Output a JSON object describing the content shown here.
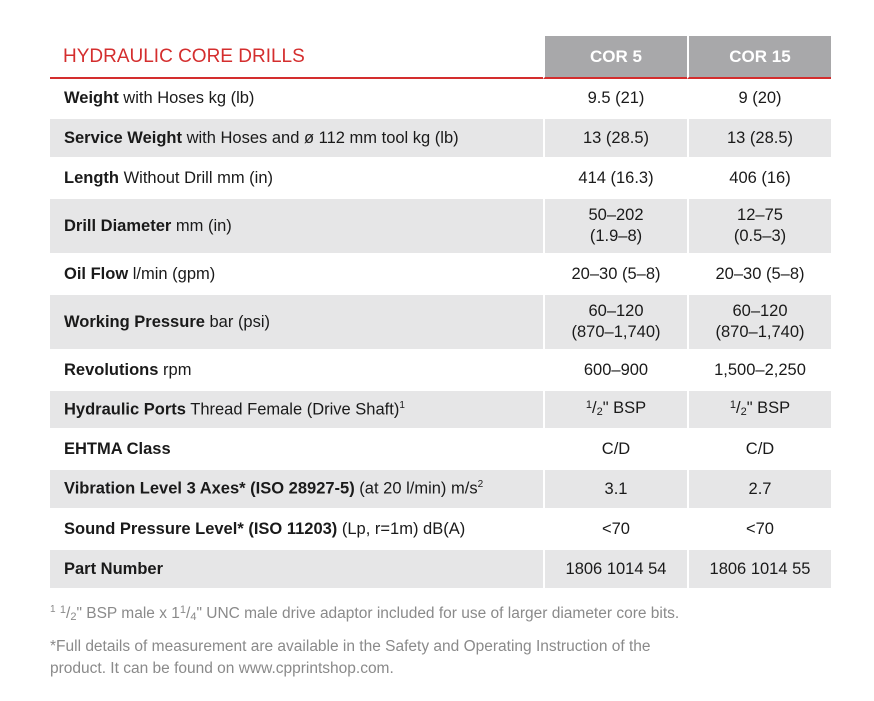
{
  "table": {
    "title": "HYDRAULIC CORE DRILLS",
    "models": [
      "COR 5",
      "COR 15"
    ],
    "rows": [
      {
        "bold": "Weight",
        "rest": " with Hoses kg (lb)",
        "v1": "9.5 (21)",
        "v2": "9 (20)"
      },
      {
        "bold": "Service Weight",
        "rest": " with Hoses and ø 112 mm tool kg (lb)",
        "v1": "13 (28.5)",
        "v2": "13 (28.5)"
      },
      {
        "bold": "Length",
        "rest": " Without Drill mm (in)",
        "v1": "414 (16.3)",
        "v2": "406 (16)"
      },
      {
        "bold": "Drill Diameter",
        "rest": " mm (in)",
        "v1a": "50–202",
        "v1b": "(1.9–8)",
        "v2a": "12–75",
        "v2b": "(0.5–3)"
      },
      {
        "bold": "Oil Flow",
        "rest": " l/min (gpm)",
        "v1": "20–30 (5–8)",
        "v2": "20–30 (5–8)"
      },
      {
        "bold": "Working Pressure",
        "rest": " bar (psi)",
        "v1a": "60–120",
        "v1b": "(870–1,740)",
        "v2a": "60–120",
        "v2b": "(870–1,740)"
      },
      {
        "bold": "Revolutions",
        "rest": " rpm",
        "v1": "600–900",
        "v2": "1,500–2,250"
      },
      {
        "bold": "Hydraulic Ports",
        "rest": " Thread Female (Drive Shaft)",
        "sup": "1",
        "num": "1",
        "den": "2",
        "unit": "\" BSP"
      },
      {
        "bold": "EHTMA Class",
        "rest": "",
        "v1": "C/D",
        "v2": "C/D"
      },
      {
        "bold": "Vibration Level 3 Axes* (ISO 28927-5)",
        "rest": " (at 20 l/min) m/s",
        "sup": "2",
        "v1": "3.1",
        "v2": "2.7"
      },
      {
        "bold": "Sound Pressure Level* (ISO 11203)",
        "rest": " (Lp, r=1m) dB(A)",
        "v1": "<70",
        "v2": "<70"
      },
      {
        "bold": "Part Number",
        "rest": "",
        "v1": "1806 1014 54",
        "v2": "1806 1014 55"
      }
    ]
  },
  "footnotes": {
    "fn1_mark": "1",
    "fn1_a": "1",
    "fn1_a_den": "2",
    "fn1_b": "\" BSP male x 1",
    "fn1_c_num": "1",
    "fn1_c_den": "4",
    "fn1_d": "\" UNC male drive adaptor included for use of larger diameter core bits.",
    "fn2_line1": "*Full details of measurement are available in the Safety and Operating Instruction of the",
    "fn2_line2": "product. It can be found on www.cpprintshop.com."
  }
}
